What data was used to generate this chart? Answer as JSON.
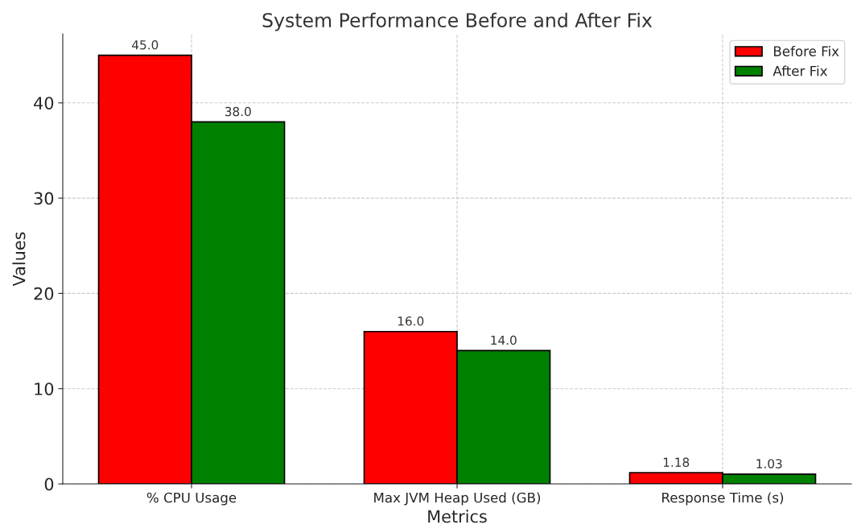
{
  "chart_data": {
    "type": "bar",
    "title": "System Performance Before and After Fix",
    "xlabel": "Metrics",
    "ylabel": "Values",
    "categories": [
      "% CPU Usage",
      "Max JVM Heap Used (GB)",
      "Response Time (s)"
    ],
    "series": [
      {
        "name": "Before Fix",
        "color": "#ff0000",
        "values": [
          45.0,
          16.0,
          1.18
        ],
        "value_labels": [
          "45.0",
          "16.0",
          "1.18"
        ]
      },
      {
        "name": "After Fix",
        "color": "#008000",
        "values": [
          38.0,
          14.0,
          1.03
        ],
        "value_labels": [
          "38.0",
          "14.0",
          "1.03"
        ]
      }
    ],
    "ylim": [
      0,
      47.25
    ],
    "yticks": [
      0,
      10,
      20,
      30,
      40
    ],
    "grid": true,
    "legend": "top right"
  }
}
